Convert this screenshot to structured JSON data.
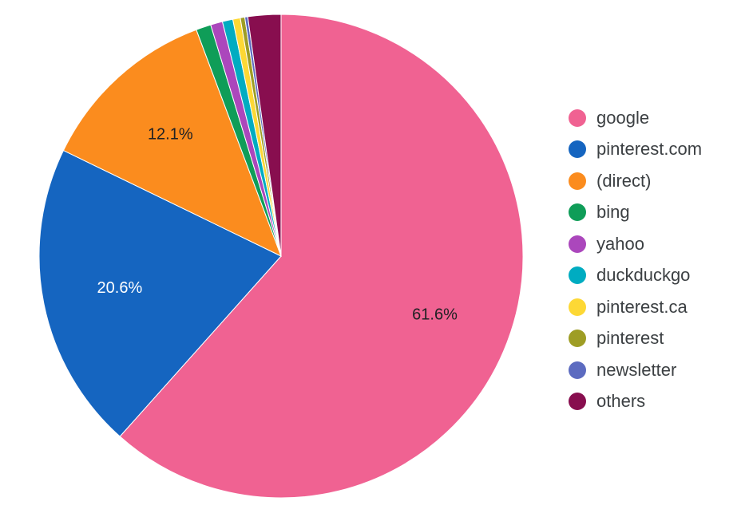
{
  "chart_data": {
    "type": "pie",
    "categories": [
      "google",
      "pinterest.com",
      "(direct)",
      "bing",
      "yahoo",
      "duckduckgo",
      "pinterest.ca",
      "pinterest",
      "newsletter",
      "others"
    ],
    "values": [
      61.6,
      20.6,
      12.1,
      1.0,
      0.8,
      0.7,
      0.5,
      0.3,
      0.2,
      2.2
    ],
    "data_labels": [
      "61.6%",
      "20.6%",
      "12.1%",
      "",
      "",
      "",
      "",
      "",
      "",
      ""
    ],
    "colors": [
      "#f06292",
      "#1565c0",
      "#fb8c1e",
      "#0f9d58",
      "#ab47bc",
      "#00acc1",
      "#fdd835",
      "#9e9d24",
      "#5c6bc0",
      "#880e4f"
    ],
    "label_colors": [
      "#202124",
      "#ffffff",
      "#202124"
    ],
    "legend_position": "right",
    "start": "top",
    "direction": "clockwise"
  }
}
